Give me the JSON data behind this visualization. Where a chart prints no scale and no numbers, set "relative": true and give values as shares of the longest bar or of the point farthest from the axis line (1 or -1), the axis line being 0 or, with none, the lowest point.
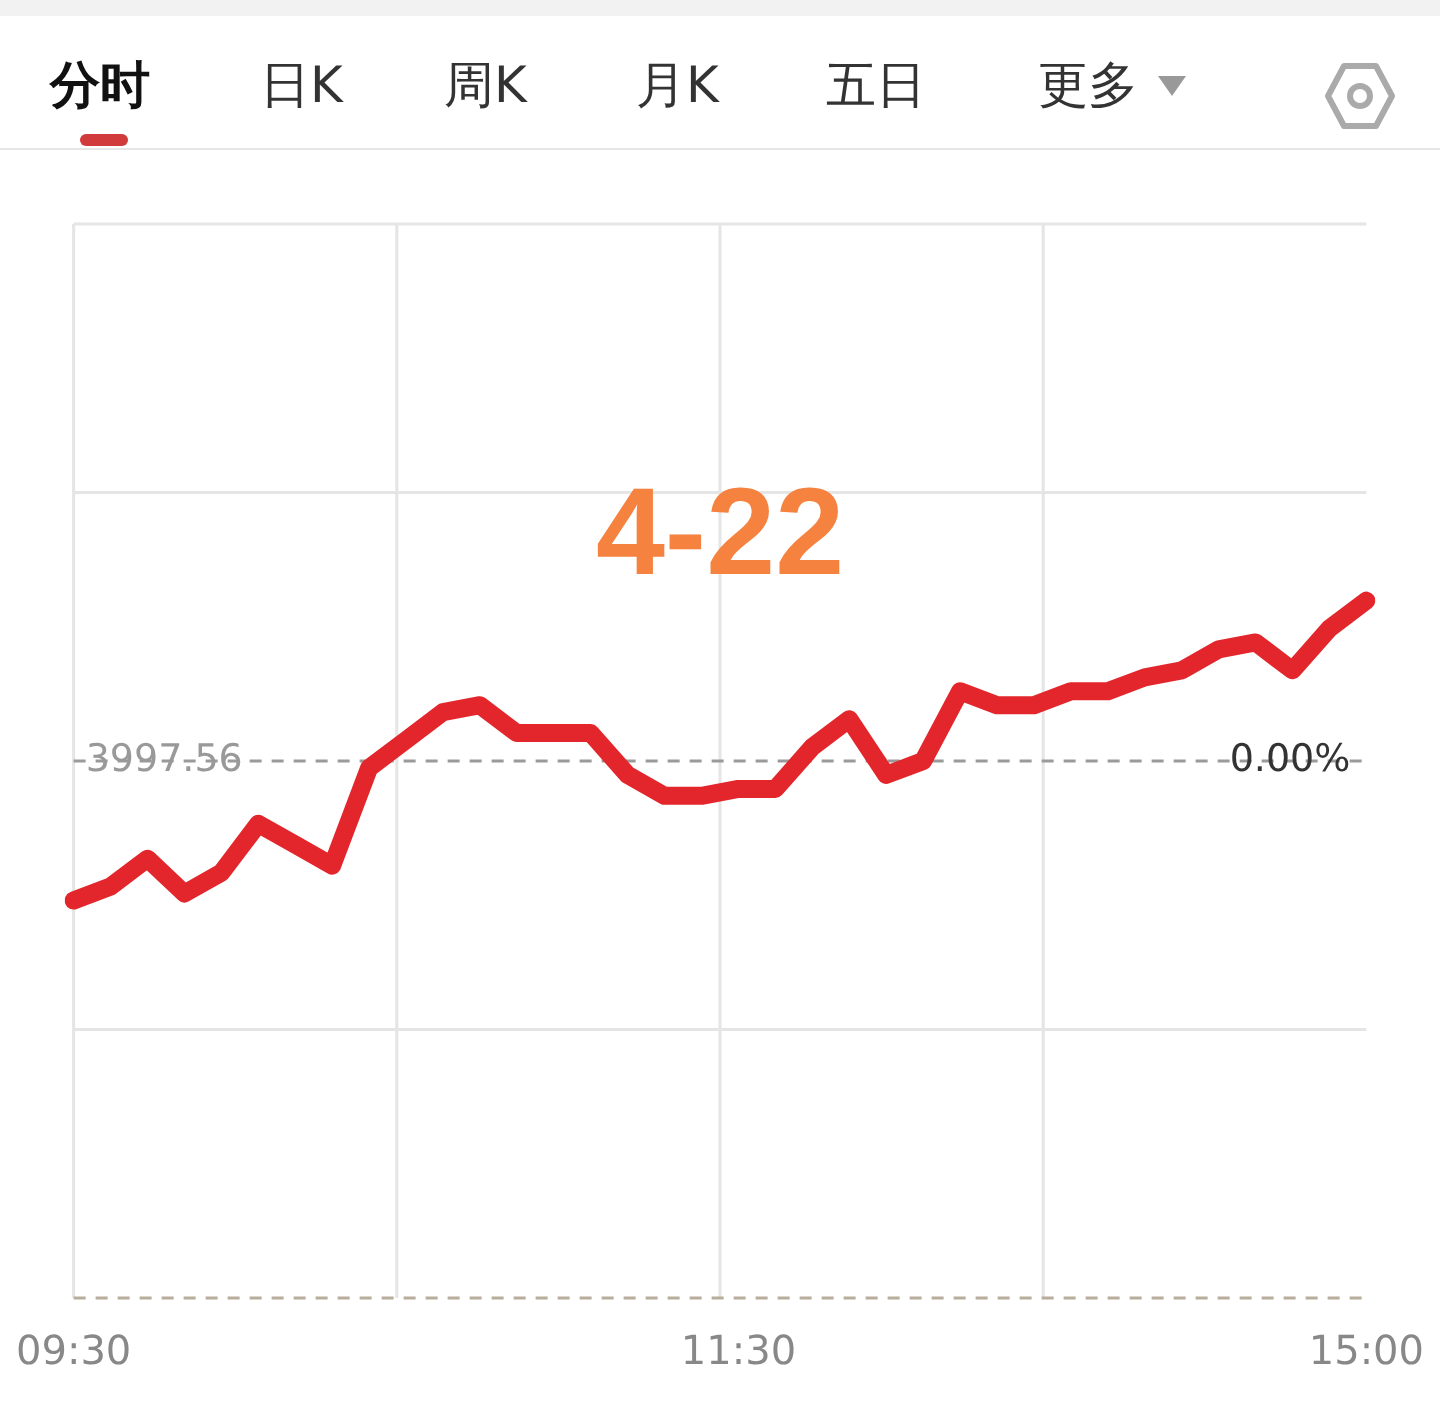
{
  "chart_data": {
    "type": "line",
    "title": "4-22",
    "relative": true,
    "categories": [
      "09:30",
      null,
      null,
      null,
      null,
      null,
      null,
      null,
      null,
      null,
      null,
      null,
      null,
      null,
      null,
      null,
      null,
      null,
      "11:30",
      null,
      null,
      null,
      null,
      null,
      null,
      null,
      null,
      null,
      null,
      null,
      null,
      null,
      null,
      null,
      null,
      "15:00"
    ],
    "series": [
      {
        "color": "#e3262c",
        "values": [
          0.57,
          0.59,
          0.63,
          0.58,
          0.61,
          0.68,
          0.65,
          0.62,
          0.76,
          0.8,
          0.84,
          0.85,
          0.81,
          0.81,
          0.81,
          0.75,
          0.72,
          0.72,
          0.73,
          0.73,
          0.79,
          0.83,
          0.75,
          0.77,
          0.87,
          0.85,
          0.85,
          0.87,
          0.87,
          0.89,
          0.9,
          0.93,
          0.94,
          0.9,
          0.96,
          1
        ]
      }
    ],
    "ref_lines": [
      {
        "axis": "y",
        "value": 0.77,
        "color": "#9a9a9a",
        "line_style": "dashed"
      }
    ],
    "annotations": [
      "分时",
      "日K",
      "周K",
      "月K",
      "五日",
      "更多",
      "3997.56",
      "0.00%"
    ],
    "grid": true,
    "legend": false,
    "marker": "none",
    "line_style": "solid"
  }
}
